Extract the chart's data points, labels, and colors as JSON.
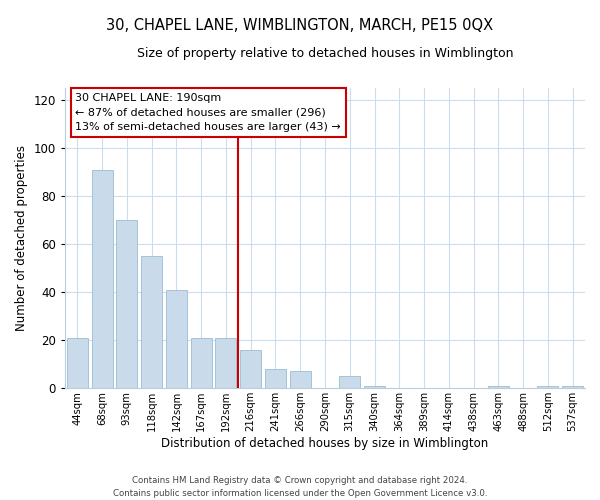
{
  "title": "30, CHAPEL LANE, WIMBLINGTON, MARCH, PE15 0QX",
  "subtitle": "Size of property relative to detached houses in Wimblington",
  "xlabel": "Distribution of detached houses by size in Wimblington",
  "ylabel": "Number of detached properties",
  "bar_labels": [
    "44sqm",
    "68sqm",
    "93sqm",
    "118sqm",
    "142sqm",
    "167sqm",
    "192sqm",
    "216sqm",
    "241sqm",
    "266sqm",
    "290sqm",
    "315sqm",
    "340sqm",
    "364sqm",
    "389sqm",
    "414sqm",
    "438sqm",
    "463sqm",
    "488sqm",
    "512sqm",
    "537sqm"
  ],
  "bar_values": [
    21,
    91,
    70,
    55,
    41,
    21,
    21,
    16,
    8,
    7,
    0,
    5,
    1,
    0,
    0,
    0,
    0,
    1,
    0,
    1,
    1
  ],
  "bar_color": "#c9daea",
  "bar_edge_color": "#9bbdd4",
  "vline_index": 6,
  "vline_color": "#cc0000",
  "annotation_line1": "30 CHAPEL LANE: 190sqm",
  "annotation_line2": "← 87% of detached houses are smaller (296)",
  "annotation_line3": "13% of semi-detached houses are larger (43) →",
  "ylim": [
    0,
    125
  ],
  "yticks": [
    0,
    20,
    40,
    60,
    80,
    100,
    120
  ],
  "footer_line1": "Contains HM Land Registry data © Crown copyright and database right 2024.",
  "footer_line2": "Contains public sector information licensed under the Open Government Licence v3.0.",
  "background_color": "#ffffff",
  "grid_color": "#ccddee",
  "title_fontsize": 10.5,
  "subtitle_fontsize": 9
}
